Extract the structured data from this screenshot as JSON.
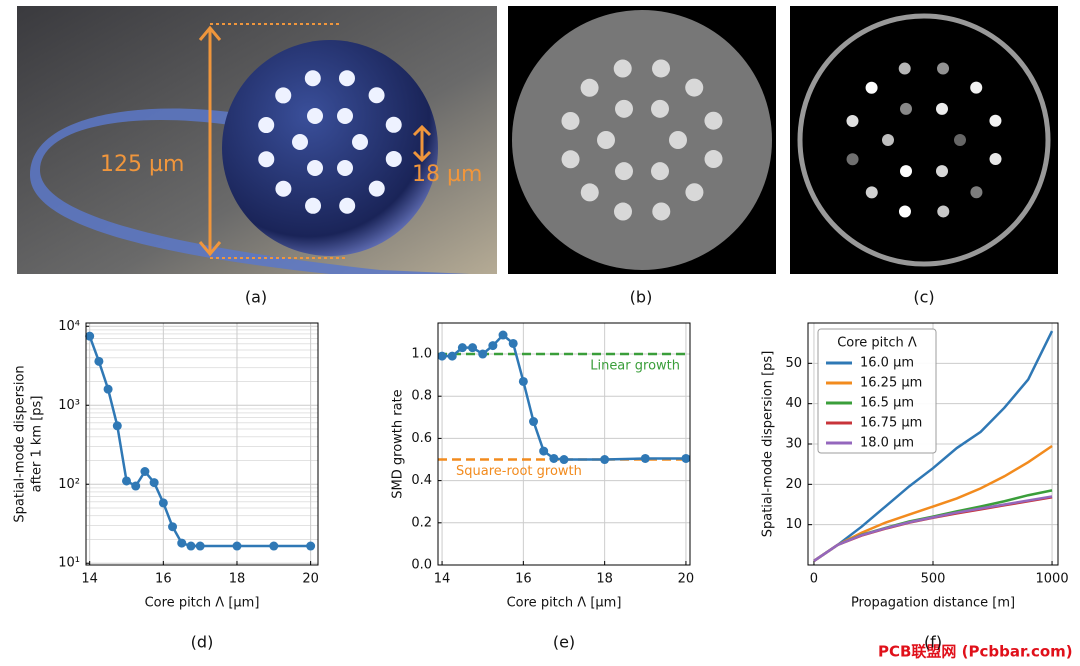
{
  "panels": {
    "a": {
      "caption": "(a)",
      "annotations": [
        "125 µm",
        "18 µm"
      ]
    },
    "b": {
      "caption": "(b)"
    },
    "c": {
      "caption": "(c)"
    }
  },
  "chart_data": [
    {
      "type": "line",
      "markers": true,
      "caption": "(d)",
      "log_y": true,
      "grid": true,
      "xlabel": "Core pitch Λ [µm]",
      "ylabel": [
        "Spatial-mode dispersion",
        "after 1 km [ps]"
      ],
      "color": "#2f78b5",
      "x": [
        14,
        14.25,
        14.5,
        14.75,
        15,
        15.25,
        15.5,
        15.75,
        16,
        16.25,
        16.5,
        16.75,
        17,
        18,
        19,
        20
      ],
      "values": [
        7500,
        3600,
        1600,
        550,
        110,
        95,
        145,
        105,
        58,
        29,
        18,
        16.5,
        16.5,
        16.5,
        16.5,
        16.5
      ],
      "xlim": [
        13.9,
        20.2
      ],
      "xticks": [
        14,
        16,
        18,
        20
      ],
      "ylim": [
        9.5,
        11000
      ],
      "yticks": [
        {
          "value": 10,
          "label": "10¹"
        },
        {
          "value": 100,
          "label": "10²"
        },
        {
          "value": 1000,
          "label": "10³"
        },
        {
          "value": 10000,
          "label": "10⁴"
        }
      ]
    },
    {
      "type": "line",
      "markers": true,
      "caption": "(e)",
      "grid": true,
      "xlabel": "Core pitch Λ [µm]",
      "ylabel": [
        "SMD growth rate"
      ],
      "color": "#2f78b5",
      "x": [
        14,
        14.25,
        14.5,
        14.75,
        15,
        15.25,
        15.5,
        15.75,
        16,
        16.25,
        16.5,
        16.75,
        17,
        18,
        19,
        20
      ],
      "values": [
        0.99,
        0.99,
        1.03,
        1.03,
        1.0,
        1.04,
        1.09,
        1.05,
        0.87,
        0.68,
        0.54,
        0.505,
        0.5,
        0.5,
        0.505,
        0.505
      ],
      "hlines": [
        {
          "value": 1,
          "label": "Linear growth",
          "color": "#3a9e3a"
        },
        {
          "value": 0.5,
          "label": "Square-root growth",
          "color": "#f28b1e"
        }
      ],
      "xlim": [
        13.9,
        20.1
      ],
      "xticks": [
        14,
        16,
        18,
        20
      ],
      "ylim": [
        0,
        1.147
      ],
      "yticks": [
        {
          "value": 0,
          "label": "0.0"
        },
        {
          "value": 0.2,
          "label": "0.2"
        },
        {
          "value": 0.4,
          "label": "0.4"
        },
        {
          "value": 0.6,
          "label": "0.6"
        },
        {
          "value": 0.8,
          "label": "0.8"
        },
        {
          "value": 1,
          "label": "1.0"
        }
      ]
    },
    {
      "type": "line",
      "markers": false,
      "caption": "(f)",
      "grid": true,
      "legend": "upper left",
      "legend_title": "Core pitch Λ",
      "xlabel": "Propagation distance [m]",
      "ylabel": [
        "Spatial-mode dispersion [ps]"
      ],
      "x": [
        0,
        100,
        200,
        300,
        400,
        500,
        600,
        700,
        800,
        900,
        1000
      ],
      "series": [
        {
          "name": "16.0 µm",
          "color": "#2f78b5",
          "values": [
            1,
            5,
            9.5,
            14.5,
            19.5,
            24,
            29,
            33,
            39,
            46,
            58
          ]
        },
        {
          "name": "16.25 µm",
          "color": "#f28b1e",
          "values": [
            1,
            5,
            8,
            10.5,
            12.5,
            14.5,
            16.5,
            19,
            22,
            25.5,
            29.5
          ]
        },
        {
          "name": "16.5 µm",
          "color": "#3a9e3a",
          "values": [
            1,
            5,
            7.5,
            9.2,
            10.8,
            12,
            13.3,
            14.5,
            15.8,
            17.3,
            18.5
          ]
        },
        {
          "name": "16.75 µm",
          "color": "#c8343a",
          "values": [
            1,
            5,
            7.3,
            9,
            10.5,
            11.7,
            12.8,
            13.8,
            14.8,
            15.8,
            16.8
          ]
        },
        {
          "name": "18.0 µm",
          "color": "#9467bd",
          "values": [
            1,
            5,
            7.4,
            9.1,
            10.6,
            11.8,
            13,
            14,
            15,
            16,
            17
          ]
        }
      ],
      "xlim": [
        -25,
        1025
      ],
      "xticks": [
        0,
        500,
        1000
      ],
      "ylim": [
        0,
        60
      ],
      "yticks": [
        10,
        20,
        30,
        40,
        50
      ]
    }
  ],
  "watermark": "PCB联盟网 (Pcbbar.com)"
}
